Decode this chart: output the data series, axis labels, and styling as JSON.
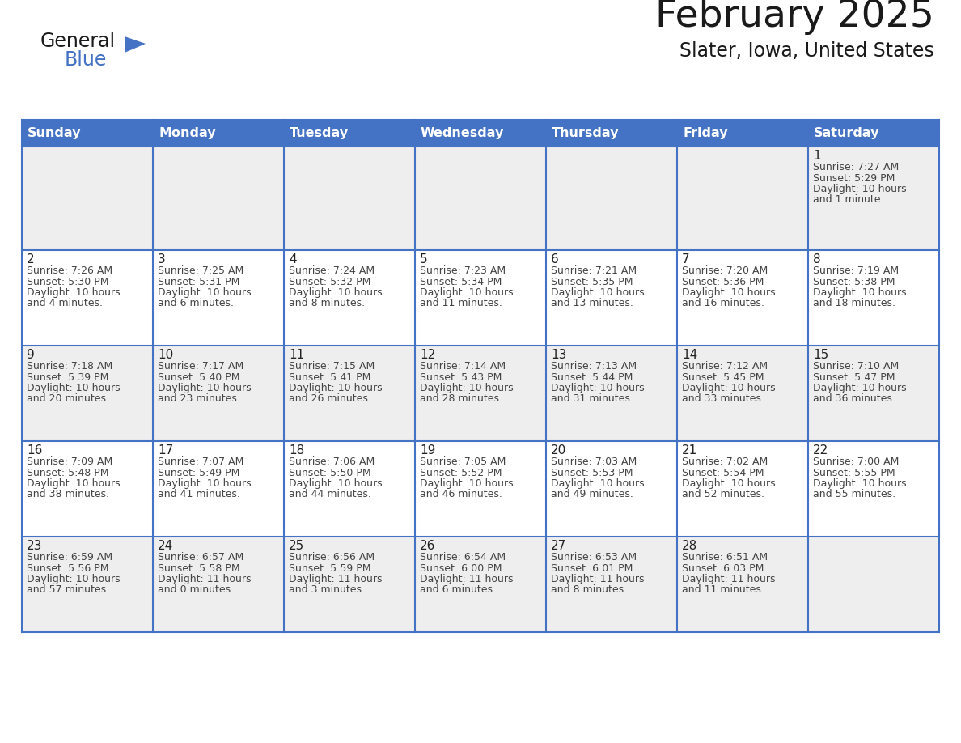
{
  "title": "February 2025",
  "subtitle": "Slater, Iowa, United States",
  "header_bg": "#4472C4",
  "header_text_color": "#FFFFFF",
  "days_of_week": [
    "Sunday",
    "Monday",
    "Tuesday",
    "Wednesday",
    "Thursday",
    "Friday",
    "Saturday"
  ],
  "row0_bg": "#EEEEEE",
  "row1_bg": "#FFFFFF",
  "row2_bg": "#EEEEEE",
  "row3_bg": "#FFFFFF",
  "row4_bg": "#EEEEEE",
  "border_color": "#4472C4",
  "text_color": "#444444",
  "day_num_color": "#222222",
  "calendar_data": [
    [
      null,
      null,
      null,
      null,
      null,
      null,
      {
        "day": 1,
        "sunrise": "7:27 AM",
        "sunset": "5:29 PM",
        "daylight1": "10 hours",
        "daylight2": "and 1 minute."
      }
    ],
    [
      {
        "day": 2,
        "sunrise": "7:26 AM",
        "sunset": "5:30 PM",
        "daylight1": "10 hours",
        "daylight2": "and 4 minutes."
      },
      {
        "day": 3,
        "sunrise": "7:25 AM",
        "sunset": "5:31 PM",
        "daylight1": "10 hours",
        "daylight2": "and 6 minutes."
      },
      {
        "day": 4,
        "sunrise": "7:24 AM",
        "sunset": "5:32 PM",
        "daylight1": "10 hours",
        "daylight2": "and 8 minutes."
      },
      {
        "day": 5,
        "sunrise": "7:23 AM",
        "sunset": "5:34 PM",
        "daylight1": "10 hours",
        "daylight2": "and 11 minutes."
      },
      {
        "day": 6,
        "sunrise": "7:21 AM",
        "sunset": "5:35 PM",
        "daylight1": "10 hours",
        "daylight2": "and 13 minutes."
      },
      {
        "day": 7,
        "sunrise": "7:20 AM",
        "sunset": "5:36 PM",
        "daylight1": "10 hours",
        "daylight2": "and 16 minutes."
      },
      {
        "day": 8,
        "sunrise": "7:19 AM",
        "sunset": "5:38 PM",
        "daylight1": "10 hours",
        "daylight2": "and 18 minutes."
      }
    ],
    [
      {
        "day": 9,
        "sunrise": "7:18 AM",
        "sunset": "5:39 PM",
        "daylight1": "10 hours",
        "daylight2": "and 20 minutes."
      },
      {
        "day": 10,
        "sunrise": "7:17 AM",
        "sunset": "5:40 PM",
        "daylight1": "10 hours",
        "daylight2": "and 23 minutes."
      },
      {
        "day": 11,
        "sunrise": "7:15 AM",
        "sunset": "5:41 PM",
        "daylight1": "10 hours",
        "daylight2": "and 26 minutes."
      },
      {
        "day": 12,
        "sunrise": "7:14 AM",
        "sunset": "5:43 PM",
        "daylight1": "10 hours",
        "daylight2": "and 28 minutes."
      },
      {
        "day": 13,
        "sunrise": "7:13 AM",
        "sunset": "5:44 PM",
        "daylight1": "10 hours",
        "daylight2": "and 31 minutes."
      },
      {
        "day": 14,
        "sunrise": "7:12 AM",
        "sunset": "5:45 PM",
        "daylight1": "10 hours",
        "daylight2": "and 33 minutes."
      },
      {
        "day": 15,
        "sunrise": "7:10 AM",
        "sunset": "5:47 PM",
        "daylight1": "10 hours",
        "daylight2": "and 36 minutes."
      }
    ],
    [
      {
        "day": 16,
        "sunrise": "7:09 AM",
        "sunset": "5:48 PM",
        "daylight1": "10 hours",
        "daylight2": "and 38 minutes."
      },
      {
        "day": 17,
        "sunrise": "7:07 AM",
        "sunset": "5:49 PM",
        "daylight1": "10 hours",
        "daylight2": "and 41 minutes."
      },
      {
        "day": 18,
        "sunrise": "7:06 AM",
        "sunset": "5:50 PM",
        "daylight1": "10 hours",
        "daylight2": "and 44 minutes."
      },
      {
        "day": 19,
        "sunrise": "7:05 AM",
        "sunset": "5:52 PM",
        "daylight1": "10 hours",
        "daylight2": "and 46 minutes."
      },
      {
        "day": 20,
        "sunrise": "7:03 AM",
        "sunset": "5:53 PM",
        "daylight1": "10 hours",
        "daylight2": "and 49 minutes."
      },
      {
        "day": 21,
        "sunrise": "7:02 AM",
        "sunset": "5:54 PM",
        "daylight1": "10 hours",
        "daylight2": "and 52 minutes."
      },
      {
        "day": 22,
        "sunrise": "7:00 AM",
        "sunset": "5:55 PM",
        "daylight1": "10 hours",
        "daylight2": "and 55 minutes."
      }
    ],
    [
      {
        "day": 23,
        "sunrise": "6:59 AM",
        "sunset": "5:56 PM",
        "daylight1": "10 hours",
        "daylight2": "and 57 minutes."
      },
      {
        "day": 24,
        "sunrise": "6:57 AM",
        "sunset": "5:58 PM",
        "daylight1": "11 hours",
        "daylight2": "and 0 minutes."
      },
      {
        "day": 25,
        "sunrise": "6:56 AM",
        "sunset": "5:59 PM",
        "daylight1": "11 hours",
        "daylight2": "and 3 minutes."
      },
      {
        "day": 26,
        "sunrise": "6:54 AM",
        "sunset": "6:00 PM",
        "daylight1": "11 hours",
        "daylight2": "and 6 minutes."
      },
      {
        "day": 27,
        "sunrise": "6:53 AM",
        "sunset": "6:01 PM",
        "daylight1": "11 hours",
        "daylight2": "and 8 minutes."
      },
      {
        "day": 28,
        "sunrise": "6:51 AM",
        "sunset": "6:03 PM",
        "daylight1": "11 hours",
        "daylight2": "and 11 minutes."
      },
      null
    ]
  ]
}
